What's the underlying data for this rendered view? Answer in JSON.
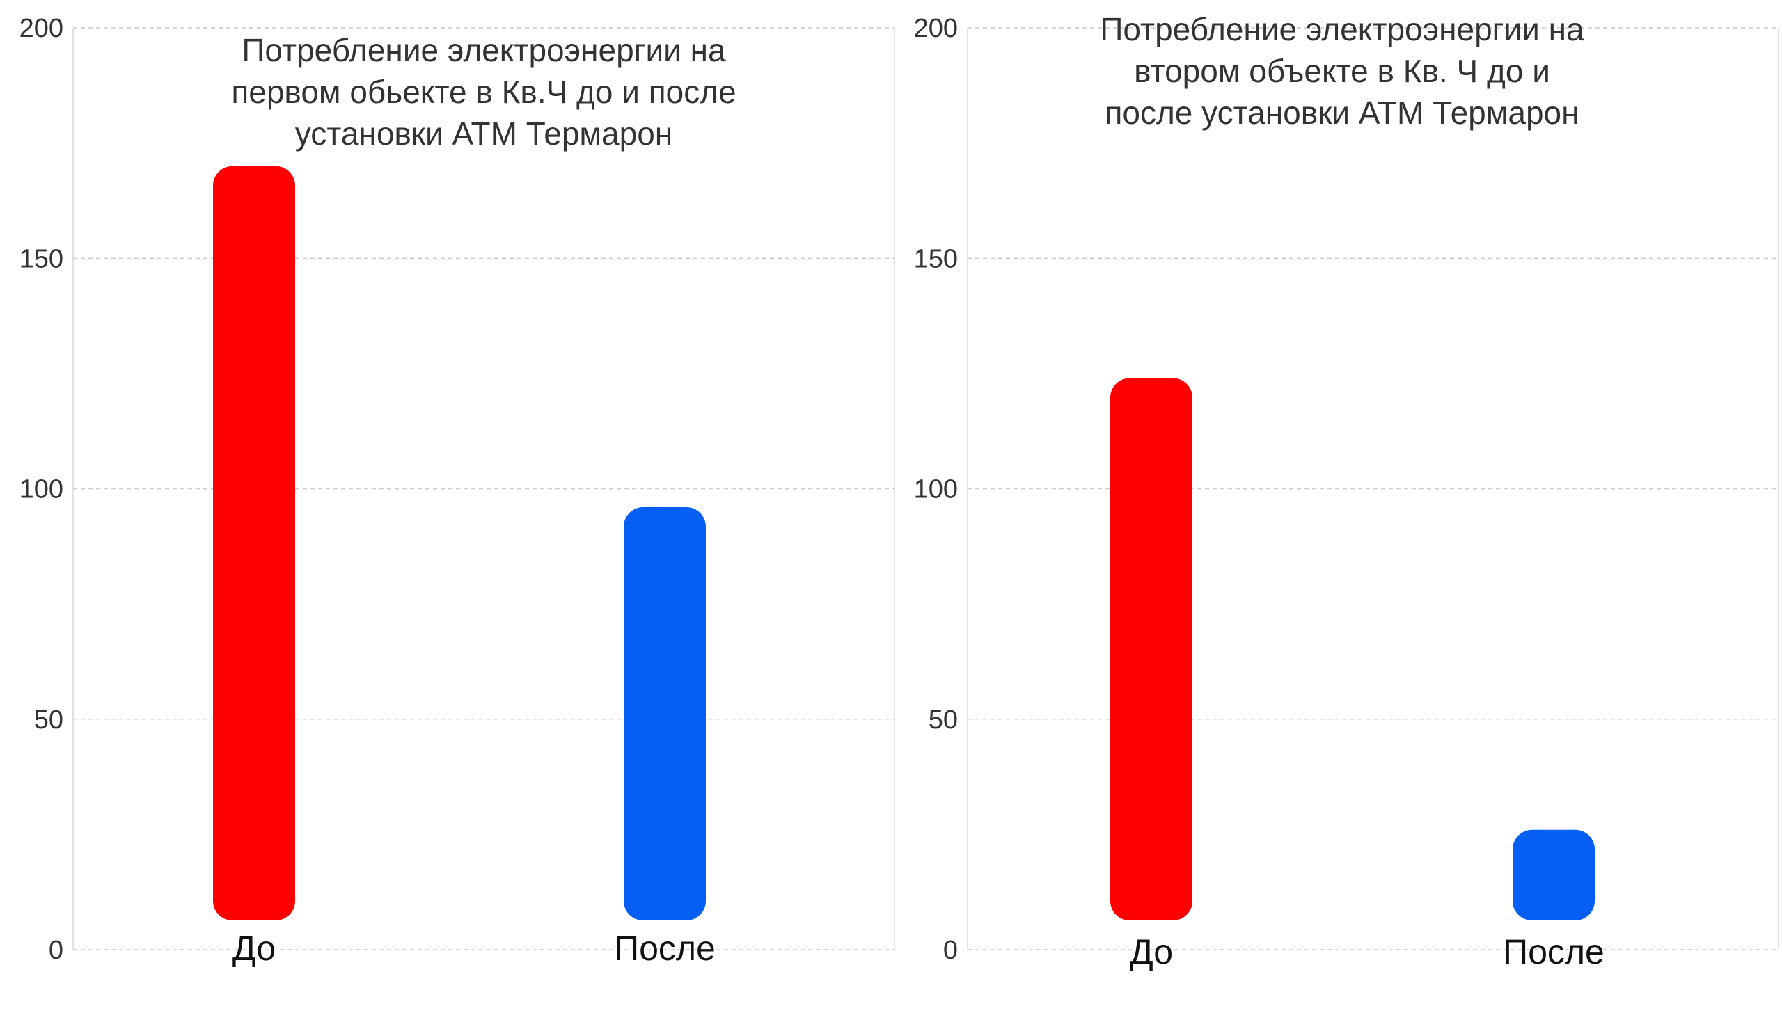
{
  "chart_data": [
    {
      "type": "bar",
      "title_lines": [
        "Потребление  электроэнергии на",
        "первом обьекте в Кв.Ч до и после",
        "установки АТМ Термарон"
      ],
      "categories": [
        "До",
        "После"
      ],
      "values": [
        170,
        96
      ],
      "colors": [
        "#ff0000",
        "#055ff5"
      ],
      "ylim": [
        0,
        200
      ],
      "yticks": [
        0,
        50,
        100,
        150,
        200
      ],
      "grid": true,
      "xlabel": "",
      "ylabel": ""
    },
    {
      "type": "bar",
      "title_lines": [
        "Потребление  электроэнергии на",
        "втором объекте в Кв. Ч до и",
        "после  установки АТМ Термарон"
      ],
      "categories": [
        "До",
        "После"
      ],
      "values": [
        124,
        26
      ],
      "colors": [
        "#ff0000",
        "#055ff5"
      ],
      "ylim": [
        0,
        200
      ],
      "yticks": [
        0,
        50,
        100,
        150,
        200
      ],
      "grid": true,
      "xlabel": "",
      "ylabel": ""
    }
  ]
}
